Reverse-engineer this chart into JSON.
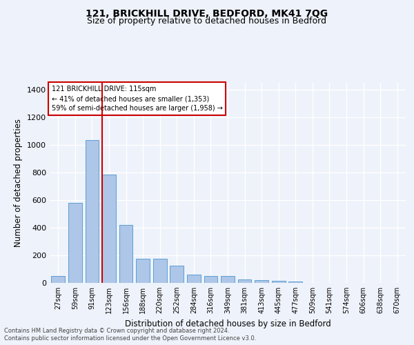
{
  "title1": "121, BRICKHILL DRIVE, BEDFORD, MK41 7QG",
  "title2": "Size of property relative to detached houses in Bedford",
  "xlabel": "Distribution of detached houses by size in Bedford",
  "ylabel": "Number of detached properties",
  "categories": [
    "27sqm",
    "59sqm",
    "91sqm",
    "123sqm",
    "156sqm",
    "188sqm",
    "220sqm",
    "252sqm",
    "284sqm",
    "316sqm",
    "349sqm",
    "381sqm",
    "413sqm",
    "445sqm",
    "477sqm",
    "509sqm",
    "541sqm",
    "574sqm",
    "606sqm",
    "638sqm",
    "670sqm"
  ],
  "values": [
    50,
    580,
    1035,
    785,
    420,
    175,
    175,
    125,
    60,
    50,
    50,
    25,
    20,
    13,
    8,
    0,
    0,
    0,
    0,
    0,
    0
  ],
  "bar_color": "#aec6e8",
  "bar_edge_color": "#5a9fd4",
  "vline_x_index": 3,
  "vline_color": "#cc0000",
  "annotation_title": "121 BRICKHILL DRIVE: 115sqm",
  "annotation_line1": "← 41% of detached houses are smaller (1,353)",
  "annotation_line2": "59% of semi-detached houses are larger (1,958) →",
  "annotation_box_edge": "#cc0000",
  "ylim": [
    0,
    1450
  ],
  "yticks": [
    0,
    200,
    400,
    600,
    800,
    1000,
    1200,
    1400
  ],
  "footer1": "Contains HM Land Registry data © Crown copyright and database right 2024.",
  "footer2": "Contains public sector information licensed under the Open Government Licence v3.0.",
  "bg_color": "#eef2fa",
  "grid_color": "#ffffff",
  "title1_fontsize": 10,
  "title2_fontsize": 9
}
